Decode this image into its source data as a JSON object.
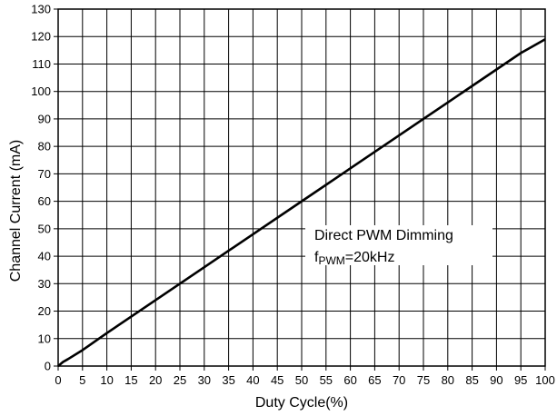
{
  "chart_data": {
    "type": "line",
    "xlabel": "Duty Cycle(%)",
    "ylabel": "Channel Current (mA)",
    "xlim": [
      0,
      100
    ],
    "ylim": [
      0,
      130
    ],
    "x_ticks": [
      0,
      5,
      10,
      15,
      20,
      25,
      30,
      35,
      40,
      45,
      50,
      55,
      60,
      65,
      70,
      75,
      80,
      85,
      90,
      95,
      100
    ],
    "y_ticks": [
      0,
      10,
      20,
      30,
      40,
      50,
      60,
      70,
      80,
      90,
      100,
      110,
      120,
      130
    ],
    "grid": true,
    "annotation": {
      "line1": "Direct PWM Dimming",
      "line2_prefix": "f",
      "line2_sub": "PWM",
      "line2_suffix": "=20kHz"
    },
    "series": [
      {
        "x": [
          0,
          1,
          2,
          5,
          10,
          20,
          30,
          40,
          50,
          60,
          70,
          80,
          90,
          95,
          96,
          100
        ],
        "y": [
          0,
          1.5,
          2.5,
          5.8,
          12,
          24,
          36,
          48,
          60,
          72,
          84,
          96,
          108,
          114,
          115,
          119
        ]
      }
    ]
  }
}
